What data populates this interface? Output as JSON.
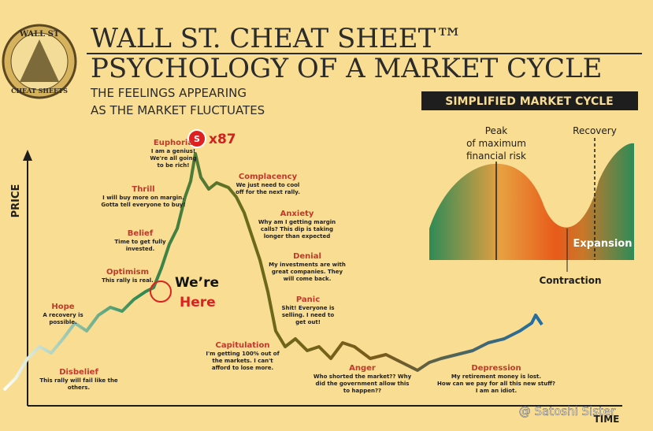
{
  "logo": {
    "top": "WALL ST",
    "bottom": "CHEAT SHEETS"
  },
  "header": {
    "title": "WALL ST. CHEAT SHEET™",
    "subtitle": "PSYCHOLOGY OF A MARKET CYCLE",
    "tagline": [
      "THE FEELINGS APPEARING",
      "AS THE MARKET FLUCTUATES"
    ]
  },
  "axes": {
    "y": "PRICE",
    "x": "TIME"
  },
  "stages": [
    {
      "name": "Hope",
      "lines": [
        "A recovery is",
        "possible."
      ]
    },
    {
      "name": "Disbelief",
      "lines": [
        "This rally will fail like the",
        "others."
      ]
    },
    {
      "name": "Optimism",
      "lines": [
        "This rally is real."
      ]
    },
    {
      "name": "Belief",
      "lines": [
        "Time to get fully",
        "invested."
      ]
    },
    {
      "name": "Thrill",
      "lines": [
        "I will buy more on margin.",
        "Gotta tell everyone to buy!"
      ]
    },
    {
      "name": "Euphoria",
      "lines": [
        "I am a genius!",
        "We're all going",
        "to be rich!"
      ]
    },
    {
      "name": "Complacency",
      "lines": [
        "We just need to cool",
        "off for the next rally."
      ]
    },
    {
      "name": "Anxiety",
      "lines": [
        "Why am I getting margin",
        "calls? This dip is taking",
        "longer than expected"
      ]
    },
    {
      "name": "Denial",
      "lines": [
        "My investments are with",
        "great companies. They",
        "will come back."
      ]
    },
    {
      "name": "Panic",
      "lines": [
        "Shit! Everyone is",
        "selling. I need to",
        "get out!"
      ]
    },
    {
      "name": "Capitulation",
      "lines": [
        "I'm getting 100% out of",
        "the markets. I can't",
        "afford to lose more."
      ]
    },
    {
      "name": "Anger",
      "lines": [
        "Who shorted the market?? Why",
        "did the government allow this",
        "to happen??"
      ]
    },
    {
      "name": "Depression",
      "lines": [
        "My retirement money is lost.",
        "How can we pay for all this new stuff?",
        "I am an idiot."
      ]
    }
  ],
  "badge": {
    "icon": "S",
    "multiplier": "x87"
  },
  "marker": [
    "We’re",
    "Here"
  ],
  "inset": {
    "title": "SIMPLIFIED MARKET CYCLE",
    "peak": [
      "Peak",
      "of maximum",
      "financial risk"
    ],
    "recovery": "Recovery",
    "expansion": "Expansion",
    "contraction": "Contraction"
  },
  "watermark": "@ Satoshi Sister"
}
